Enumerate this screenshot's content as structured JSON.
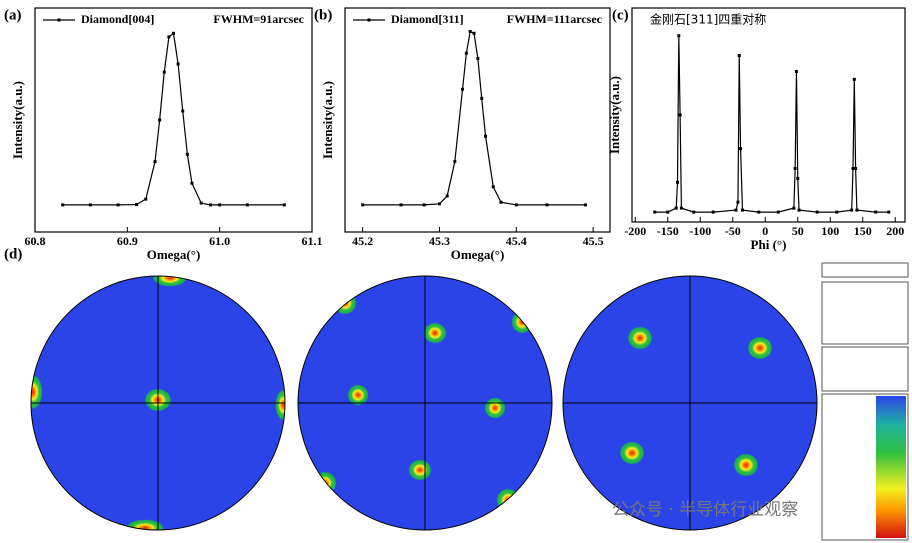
{
  "chart_data": [
    {
      "type": "line",
      "panel_label": "(a)",
      "annotation": "FWHM=91arcsec",
      "xlabel": "Omega(°)",
      "ylabel": "Intensity(a.u.)",
      "x": [
        60.83,
        60.86,
        60.89,
        60.91,
        60.92,
        60.93,
        60.935,
        60.94,
        60.945,
        60.95,
        60.955,
        60.96,
        60.965,
        60.97,
        60.98,
        60.99,
        61.0,
        61.03,
        61.07
      ],
      "series": [
        {
          "name": "Diamond[004]",
          "color": "#000000",
          "values": [
            0.03,
            0.03,
            0.03,
            0.032,
            0.062,
            0.27,
            0.5,
            0.765,
            0.96,
            0.98,
            0.81,
            0.55,
            0.31,
            0.15,
            0.04,
            0.03,
            0.03,
            0.03,
            0.03
          ]
        }
      ],
      "xlim": [
        60.8,
        61.1
      ],
      "xticks": [
        60.8,
        60.9,
        {
          "value": 61,
          "label": "61.0"
        },
        61.1
      ],
      "ylim": [
        -0.12,
        1.12
      ]
    },
    {
      "type": "line",
      "panel_label": "(b)",
      "annotation": "FWHM=111arcsec",
      "xlabel": "Omega(°)",
      "ylabel": "Intensity(a.u.)",
      "x": [
        45.2,
        45.25,
        45.28,
        45.3,
        45.31,
        45.32,
        45.33,
        45.335,
        45.34,
        45.345,
        45.35,
        45.355,
        45.36,
        45.37,
        45.38,
        45.4,
        45.44,
        45.49
      ],
      "series": [
        {
          "name": "Diamond[311]",
          "color": "#000000",
          "values": [
            0.03,
            0.03,
            0.03,
            0.036,
            0.079,
            0.27,
            0.67,
            0.87,
            0.99,
            0.98,
            0.84,
            0.62,
            0.41,
            0.13,
            0.045,
            0.03,
            0.03,
            0.03
          ]
        }
      ],
      "xlim": [
        45.177,
        45.522
      ],
      "xticks": [
        45.2,
        45.3,
        45.4,
        45.5
      ],
      "ylim": [
        -0.12,
        1.12
      ]
    },
    {
      "type": "line",
      "panel_label": "(c)",
      "title": "金刚石[311]四重对称",
      "xlabel": "Phi (°)",
      "ylabel": "Intensity(a.u.)",
      "x": [
        -170,
        -150,
        -137,
        -135,
        -133,
        -131,
        -129,
        -110,
        -80,
        -45,
        -42,
        -40,
        -38,
        -35,
        -10,
        20,
        44,
        46,
        48,
        50,
        52,
        80,
        110,
        133,
        135,
        137,
        139,
        141,
        170,
        190
      ],
      "series": [
        {
          "color": "#000000",
          "values": [
            0.03,
            0.03,
            0.05,
            0.18,
            0.92,
            0.52,
            0.05,
            0.03,
            0.03,
            0.04,
            0.08,
            0.82,
            0.35,
            0.04,
            0.03,
            0.03,
            0.05,
            0.25,
            0.74,
            0.2,
            0.04,
            0.03,
            0.03,
            0.04,
            0.25,
            0.7,
            0.25,
            0.04,
            0.03,
            0.03
          ]
        }
      ],
      "xlim": [
        -205,
        215
      ],
      "xticks": [
        -200,
        -150,
        -100,
        -50,
        0,
        50,
        100,
        150,
        200
      ],
      "ylim": [
        -0.02,
        1.06
      ]
    }
  ],
  "panel_d": {
    "label": "(d)"
  },
  "watermark": "公众号 · 半导体行业观察"
}
